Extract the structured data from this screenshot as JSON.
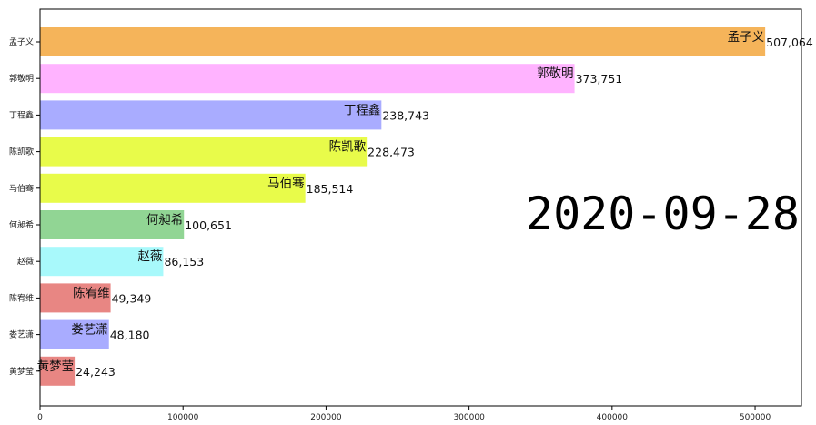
{
  "chart_data": {
    "type": "bar",
    "orientation": "horizontal",
    "date": "2020-09-28",
    "categories": [
      "孟子义",
      "郭敬明",
      "丁程鑫",
      "陈凯歌",
      "马伯骞",
      "何昶希",
      "赵薇",
      "陈宥维",
      "娄艺潇",
      "黄梦莹"
    ],
    "values": [
      507064,
      373751,
      238743,
      228473,
      185514,
      100651,
      86153,
      49349,
      48180,
      24243
    ],
    "value_labels": [
      "507,064",
      "373,751",
      "238,743",
      "228,473",
      "185,514",
      "100,651",
      "86,153",
      "49,349",
      "48,180",
      "24,243"
    ],
    "colors": [
      "#f5b45a",
      "#ffb3ff",
      "#a9acff",
      "#e8fb4a",
      "#e8fb4a",
      "#91d594",
      "#a8f9fb",
      "#e88683",
      "#a9acff",
      "#e88683"
    ],
    "xticks": [
      0,
      100000,
      200000,
      300000,
      400000,
      500000
    ],
    "xtick_labels": [
      "0",
      "100000",
      "200000",
      "300000",
      "400000",
      "500000"
    ],
    "xlim": [
      0,
      532417
    ],
    "title": "",
    "xlabel": "",
    "ylabel": "",
    "grid": false
  }
}
